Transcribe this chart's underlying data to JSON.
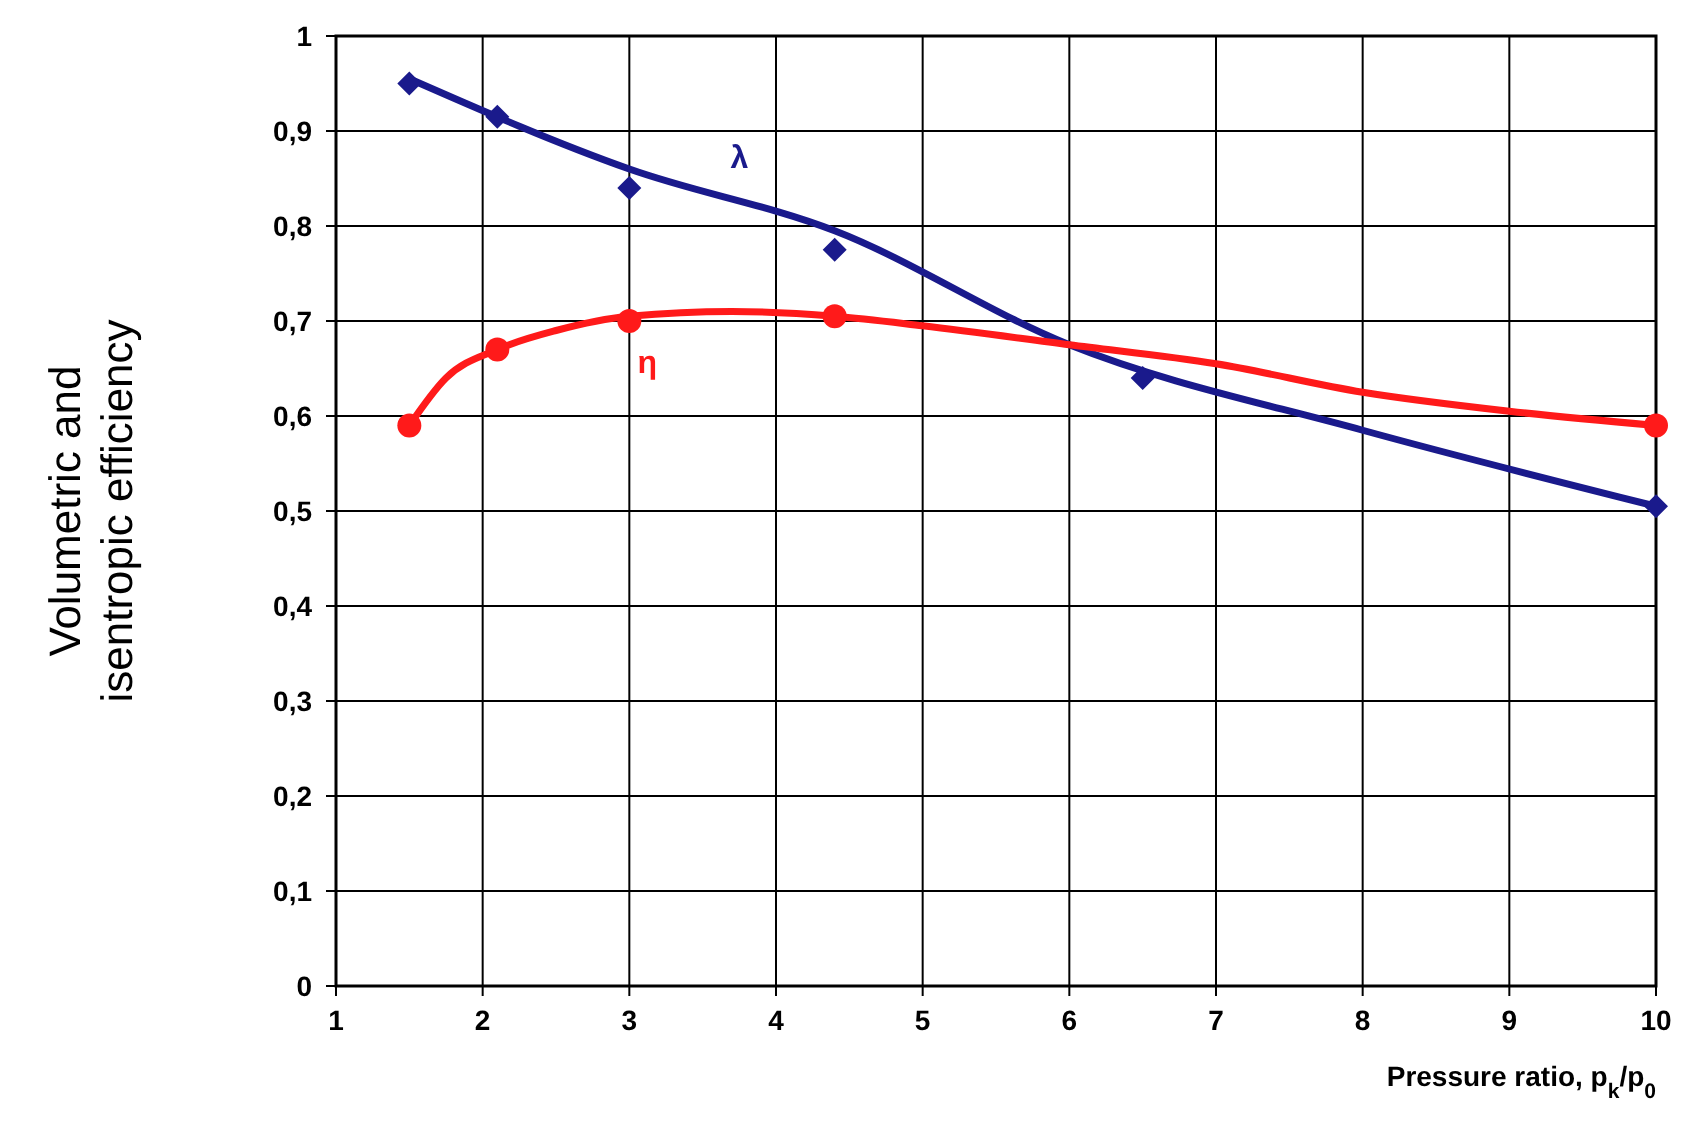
{
  "chart_data": {
    "type": "scatter",
    "xlabel": "Pressure ratio, p$_{k}$/p$_{0}$",
    "ylabel": "Volumetric and isentropic efficiency",
    "xlim": [
      1,
      10
    ],
    "ylim": [
      0,
      1
    ],
    "xticks": [
      1,
      2,
      3,
      4,
      5,
      6,
      7,
      8,
      9,
      10
    ],
    "yticks": [
      {
        "value": 0,
        "label": "0"
      },
      {
        "value": 0.1,
        "label": "0,1"
      },
      {
        "value": 0.2,
        "label": "0,2"
      },
      {
        "value": 0.3,
        "label": "0,3"
      },
      {
        "value": 0.4,
        "label": "0,4"
      },
      {
        "value": 0.5,
        "label": "0,5"
      },
      {
        "value": 0.6,
        "label": "0,6"
      },
      {
        "value": 0.7,
        "label": "0,7"
      },
      {
        "value": 0.8,
        "label": "0,8"
      },
      {
        "value": 0.9,
        "label": "0,9"
      },
      {
        "value": 1,
        "label": "1"
      }
    ],
    "grid": true,
    "legend": false,
    "series": [
      {
        "type": "line",
        "color": "#1a1a8c",
        "marker": "none",
        "x": [
          1.5,
          3,
          4.4,
          6,
          8,
          10
        ],
        "values": [
          0.955,
          0.86,
          0.795,
          0.675,
          0.585,
          0.505
        ]
      },
      {
        "type": "line",
        "color": "#ff1a1a",
        "marker": "none",
        "x": [
          1.5,
          1.75,
          2.1,
          2.5,
          3,
          3.7,
          4.4,
          5,
          6,
          7,
          8,
          9,
          10
        ],
        "values": [
          0.59,
          0.64,
          0.67,
          0.69,
          0.705,
          0.71,
          0.705,
          0.695,
          0.675,
          0.655,
          0.625,
          0.605,
          0.59
        ]
      },
      {
        "name": "λ",
        "color": "#1a1a8c",
        "marker": "diamond",
        "x": [
          1.5,
          2.1,
          3,
          4.4,
          6.5,
          10
        ],
        "values": [
          0.95,
          0.915,
          0.84,
          0.775,
          0.64,
          0.505
        ]
      },
      {
        "name": "η",
        "color": "#ff1a1a",
        "marker": "circle",
        "x": [
          1.5,
          2.1,
          3,
          4.4,
          10
        ],
        "values": [
          0.59,
          0.67,
          0.7,
          0.705,
          0.59
        ]
      }
    ]
  }
}
